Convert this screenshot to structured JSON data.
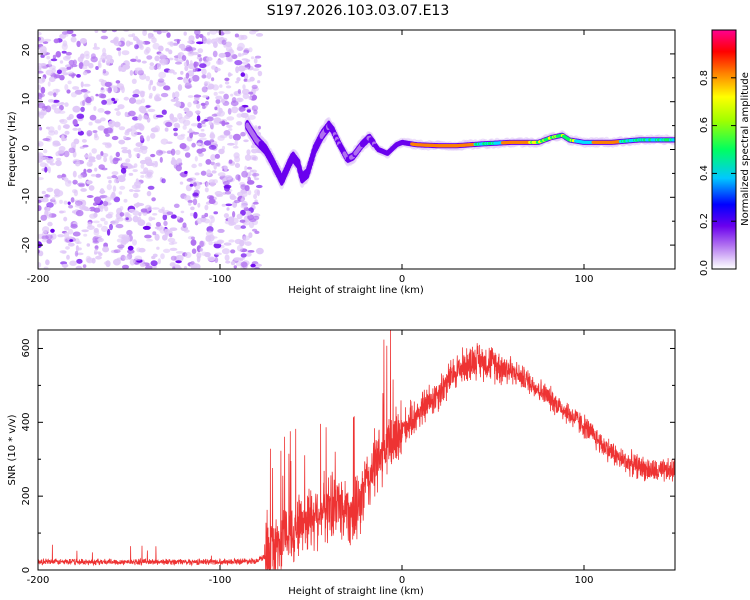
{
  "title": "S197.2026.103.03.07.E13",
  "chart_data": [
    {
      "type": "heatmap",
      "name": "spectrogram",
      "xlabel": "Height of straight line (km)",
      "ylabel": "Frequency (Hz)",
      "xlim": [
        -200,
        150
      ],
      "ylim": [
        -25,
        25
      ],
      "xticks": [
        -200,
        -100,
        0,
        100
      ],
      "xtick_labels": [
        "-200",
        "-100",
        "0",
        "100"
      ],
      "yticks": [
        -20,
        -10,
        0,
        10,
        20
      ],
      "ytick_labels": [
        "-20",
        "-10",
        "0",
        "10",
        "20"
      ],
      "noise_region_x": [
        -200,
        -78
      ],
      "ridge_trace": [
        {
          "x": -85,
          "f": 5
        },
        {
          "x": -80,
          "f": 2
        },
        {
          "x": -75,
          "f": 0
        },
        {
          "x": -72,
          "f": -2
        },
        {
          "x": -68,
          "f": -5
        },
        {
          "x": -66,
          "f": -6.5
        },
        {
          "x": -62,
          "f": -3
        },
        {
          "x": -60,
          "f": -1.5
        },
        {
          "x": -57,
          "f": -3
        },
        {
          "x": -55,
          "f": -6
        },
        {
          "x": -52,
          "f": -5
        },
        {
          "x": -48,
          "f": 0
        },
        {
          "x": -44,
          "f": 3
        },
        {
          "x": -40,
          "f": 5
        },
        {
          "x": -38,
          "f": 4
        },
        {
          "x": -35,
          "f": 1.5
        },
        {
          "x": -30,
          "f": -2
        },
        {
          "x": -27,
          "f": -1.5
        },
        {
          "x": -22,
          "f": 1
        },
        {
          "x": -18,
          "f": 2.5
        },
        {
          "x": -13,
          "f": 0
        },
        {
          "x": -8,
          "f": -0.8
        },
        {
          "x": -3,
          "f": 1
        },
        {
          "x": 0,
          "f": 1.5
        },
        {
          "x": 8,
          "f": 1
        },
        {
          "x": 20,
          "f": 0.8
        },
        {
          "x": 30,
          "f": 0.8
        },
        {
          "x": 45,
          "f": 1.2
        },
        {
          "x": 60,
          "f": 1.5
        },
        {
          "x": 75,
          "f": 1.5
        },
        {
          "x": 82,
          "f": 2.5
        },
        {
          "x": 88,
          "f": 3
        },
        {
          "x": 92,
          "f": 2
        },
        {
          "x": 100,
          "f": 1.5
        },
        {
          "x": 115,
          "f": 1.5
        },
        {
          "x": 130,
          "f": 2
        },
        {
          "x": 150,
          "f": 2
        }
      ],
      "colorbar": {
        "label": "Normalized spectral amplitude",
        "range": [
          0,
          1
        ],
        "ticks": [
          0.0,
          0.2,
          0.4,
          0.6,
          0.8
        ],
        "tick_labels": [
          "0.0",
          "0.2",
          "0.4",
          "0.6",
          "0.8"
        ],
        "colormap": [
          "#ffffff",
          "#e0c8f8",
          "#b070f0",
          "#6a00ee",
          "#0000ff",
          "#00e0ff",
          "#00ff60",
          "#ffff00",
          "#ff8000",
          "#ff0000",
          "#ff0090"
        ]
      }
    },
    {
      "type": "line",
      "name": "snr",
      "xlabel": "Height of straight line (km)",
      "ylabel": "SNR (10 * v/v)",
      "xlim": [
        -200,
        150
      ],
      "ylim": [
        0,
        650
      ],
      "xticks": [
        -200,
        -100,
        0,
        100
      ],
      "xtick_labels": [
        "-200",
        "-100",
        "0",
        "100"
      ],
      "yticks": [
        0,
        200,
        400,
        600
      ],
      "ytick_labels": [
        "0",
        "200",
        "400",
        "600"
      ],
      "color": "#ee3333",
      "envelope": {
        "x": [
          -200,
          -100,
          -80,
          -73,
          -65,
          -55,
          -45,
          -35,
          -25,
          -20,
          -15,
          -10,
          -5,
          0,
          10,
          20,
          30,
          40,
          50,
          60,
          70,
          80,
          90,
          100,
          110,
          120,
          130,
          140,
          150
        ],
        "y": [
          22,
          22,
          25,
          40,
          90,
          130,
          160,
          180,
          150,
          230,
          280,
          320,
          350,
          380,
          430,
          480,
          540,
          570,
          560,
          540,
          510,
          470,
          430,
          390,
          340,
          300,
          280,
          265,
          270
        ]
      }
    }
  ]
}
